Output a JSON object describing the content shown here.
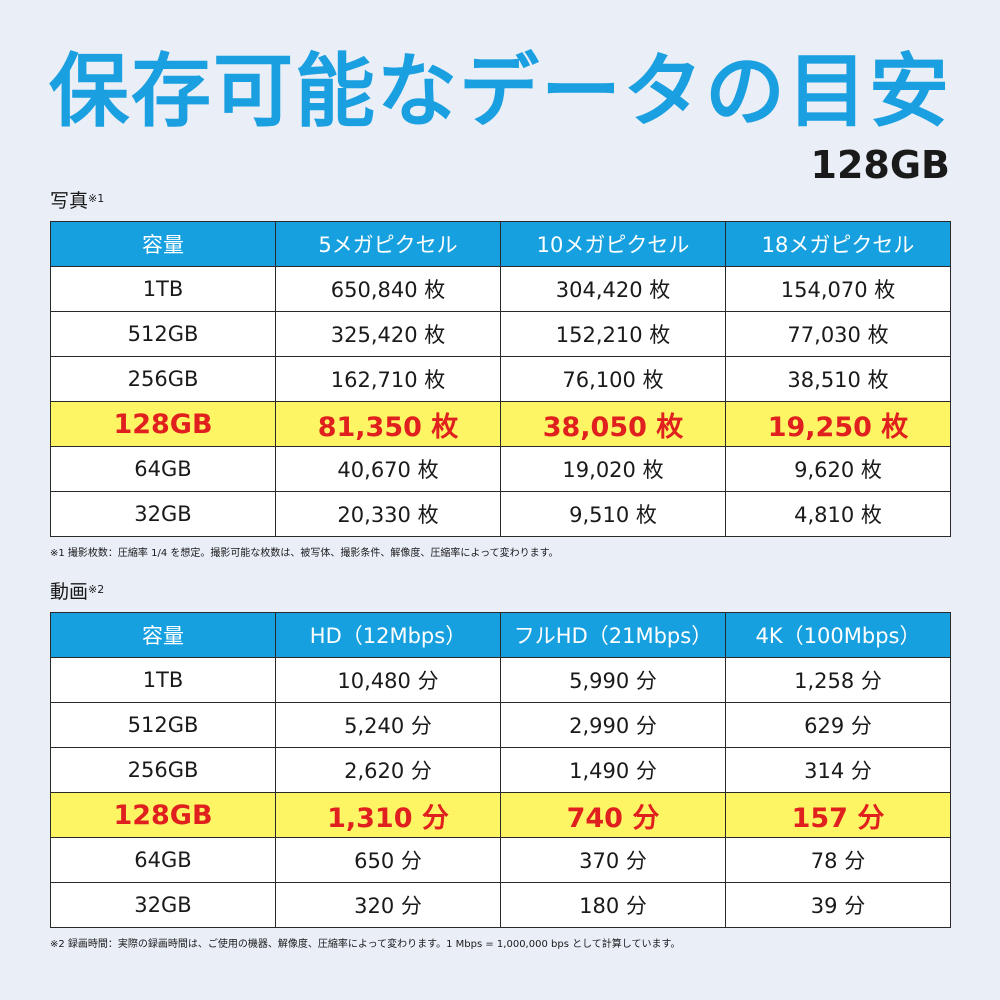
{
  "header": {
    "title": "保存可能なデータの目安",
    "capacity": "128GB"
  },
  "photo": {
    "label": "写真",
    "label_mark": "※1",
    "columns": [
      "容量",
      "5メガピクセル",
      "10メガピクセル",
      "18メガピクセル"
    ],
    "rows": [
      [
        "1TB",
        "650,840 枚",
        "304,420 枚",
        "154,070 枚"
      ],
      [
        "512GB",
        "325,420 枚",
        "152,210 枚",
        "77,030 枚"
      ],
      [
        "256GB",
        "162,710 枚",
        "76,100 枚",
        "38,510 枚"
      ],
      [
        "128GB",
        "81,350 枚",
        "38,050 枚",
        "19,250 枚"
      ],
      [
        "64GB",
        "40,670 枚",
        "19,020 枚",
        "9,620 枚"
      ],
      [
        "32GB",
        "20,330 枚",
        "9,510 枚",
        "4,810 枚"
      ]
    ],
    "highlight_row": 3,
    "note": "※1 撮影枚数：圧縮率 1/4 を想定。撮影可能な枚数は、被写体、撮影条件、解像度、圧縮率によって変わります。"
  },
  "video": {
    "label": "動画",
    "label_mark": "※2",
    "columns": [
      "容量",
      "HD（12Mbps）",
      "フルHD（21Mbps）",
      "4K（100Mbps）"
    ],
    "rows": [
      [
        "1TB",
        "10,480 分",
        "5,990 分",
        "1,258 分"
      ],
      [
        "512GB",
        "5,240 分",
        "2,990 分",
        "629 分"
      ],
      [
        "256GB",
        "2,620 分",
        "1,490 分",
        "314 分"
      ],
      [
        "128GB",
        "1,310 分",
        "740 分",
        "157 分"
      ],
      [
        "64GB",
        "650 分",
        "370 分",
        "78 分"
      ],
      [
        "32GB",
        "320 分",
        "180 分",
        "39 分"
      ]
    ],
    "highlight_row": 3,
    "note": "※2 録画時間：実際の録画時間は、ご使用の機器、解像度、圧縮率によって変わります。1 Mbps = 1,000,000 bps として計算しています。"
  },
  "colors": {
    "accent": "#1a9fe0",
    "header_bg": "#17a0df",
    "highlight_bg": "#fdf563",
    "highlight_text": "#e01f1f",
    "page_bg": "#e9eef7"
  }
}
